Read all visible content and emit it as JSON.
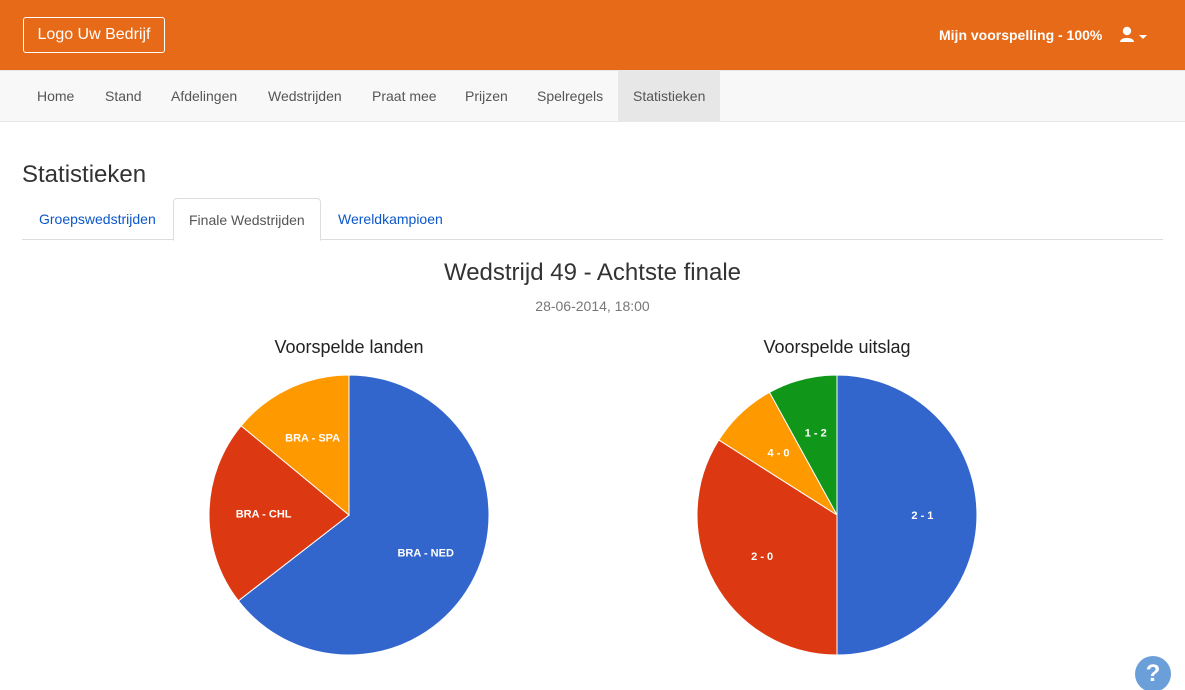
{
  "header": {
    "logo_label": "Logo Uw Bedrijf",
    "prediction_label": "Mijn voorspelling - 100%",
    "user_icon": "user-icon",
    "caret_icon": "caret-down-icon",
    "accent_color": "#e66a17"
  },
  "nav": {
    "items": [
      {
        "label": "Home"
      },
      {
        "label": "Stand"
      },
      {
        "label": "Afdelingen"
      },
      {
        "label": "Wedstrijden"
      },
      {
        "label": "Praat mee"
      },
      {
        "label": "Prijzen"
      },
      {
        "label": "Spelregels"
      },
      {
        "label": "Statistieken",
        "active": true
      }
    ]
  },
  "page": {
    "title": "Statistieken",
    "tabs": [
      {
        "label": "Groepswedstrijden"
      },
      {
        "label": "Finale Wedstrijden",
        "active": true
      },
      {
        "label": "Wereldkampioen"
      }
    ],
    "match_title": "Wedstrijd 49 - Achtste finale",
    "match_date": "28-06-2014, 18:00"
  },
  "chart_data": [
    {
      "type": "pie",
      "title": "Voorspelde landen",
      "categories": [
        "BRA - NED",
        "BRA - CHL",
        "BRA - SPA"
      ],
      "values": [
        64.5,
        21.5,
        14
      ],
      "colors": [
        "#3366cc",
        "#dc3912",
        "#ff9900"
      ]
    },
    {
      "type": "pie",
      "title": "Voorspelde uitslag",
      "categories": [
        "2 - 1",
        "2 - 0",
        "4 - 0",
        "1 - 2"
      ],
      "values": [
        50,
        34,
        8,
        8
      ],
      "colors": [
        "#3366cc",
        "#dc3912",
        "#ff9900",
        "#109618"
      ]
    }
  ],
  "help": {
    "label": "?",
    "icon": "help-icon"
  }
}
